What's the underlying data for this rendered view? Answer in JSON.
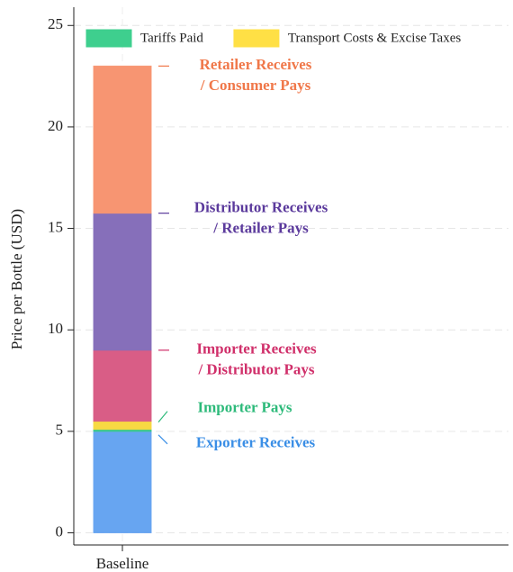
{
  "chart_data": {
    "type": "stacked_bar",
    "y_label": "Price per Bottle (USD)",
    "categories": [
      "Baseline"
    ],
    "ylim": [
      -0.6,
      25.9
    ],
    "yticks": [
      0,
      5,
      10,
      15,
      20,
      25
    ],
    "grid": true,
    "legend": "top",
    "series": [
      {
        "color": "#6aaaf8",
        "values": [
          5.0
        ],
        "label": [
          "Exporter Receives"
        ],
        "label_color": "#3a8ee6"
      },
      {
        "name": "Tariffs Paid",
        "color": "#3ecf8e",
        "values": [
          0.1
        ]
      },
      {
        "name": "Transport Costs & Excise Taxes",
        "color": "#ffe045",
        "values": [
          0.4
        ],
        "label": [
          "Importer Pays"
        ],
        "label_color": "#2dba7a"
      },
      {
        "color": "#e0608a",
        "values": [
          3.5
        ],
        "label": [
          "Importer Receives",
          "/ Distributor Pays"
        ],
        "label_color": "#d02f6a"
      },
      {
        "color": "#8a72c0",
        "values": [
          6.75
        ],
        "label": [
          "Distributor Receives",
          "/ Retailer Pays"
        ],
        "label_color": "#5b3a9c"
      },
      {
        "color": "#ff9a76",
        "values": [
          7.25
        ],
        "label": [
          "Retailer Receives",
          "/ Consumer Pays"
        ],
        "label_color": "#f0784a"
      }
    ]
  }
}
